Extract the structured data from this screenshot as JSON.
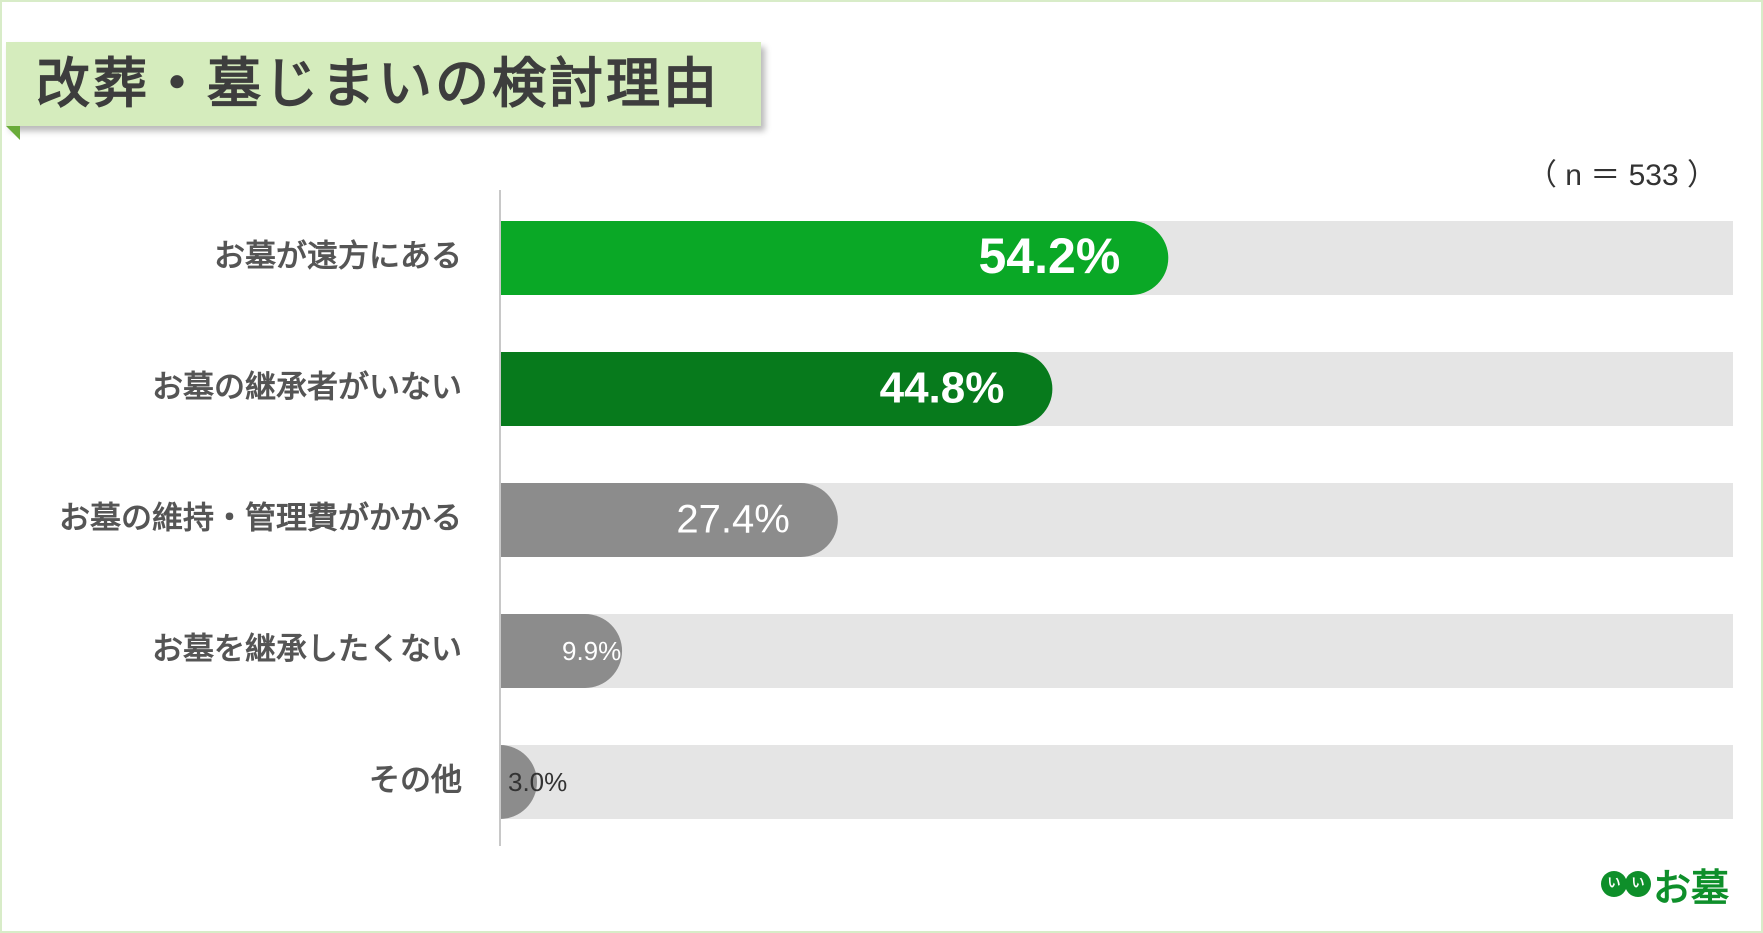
{
  "title": "改葬・墓じまいの検討理由",
  "sample_size": "（ n ＝ 533 ）",
  "logo": {
    "circle_text": "いい",
    "text": "お墓"
  },
  "colors": {
    "primary": "#0aa826",
    "secondary": "#077a1c",
    "neutral": "#8c8c8c",
    "track": "#e5e5e5",
    "title_bg": "#d5ecbd"
  },
  "chart_data": {
    "type": "bar",
    "orientation": "horizontal",
    "title": "改葬・墓じまいの検討理由",
    "categories": [
      "お墓が遠方にある",
      "お墓の継承者がいない",
      "お墓の維持・管理費がかかる",
      "お墓を継承したくない",
      "その他"
    ],
    "values": [
      54.2,
      44.8,
      27.4,
      9.9,
      3.0
    ],
    "value_labels": [
      "54.2%",
      "44.8%",
      "27.4%",
      "9.9%",
      "3.0%"
    ],
    "bar_colors": [
      "#0aa826",
      "#077a1c",
      "#8c8c8c",
      "#8c8c8c",
      "#8c8c8c"
    ],
    "label_colors": [
      "#ffffff",
      "#ffffff",
      "#ffffff",
      "#ffffff",
      "#333333"
    ],
    "xlim": [
      0,
      100
    ],
    "grid": false,
    "legend": "none"
  }
}
